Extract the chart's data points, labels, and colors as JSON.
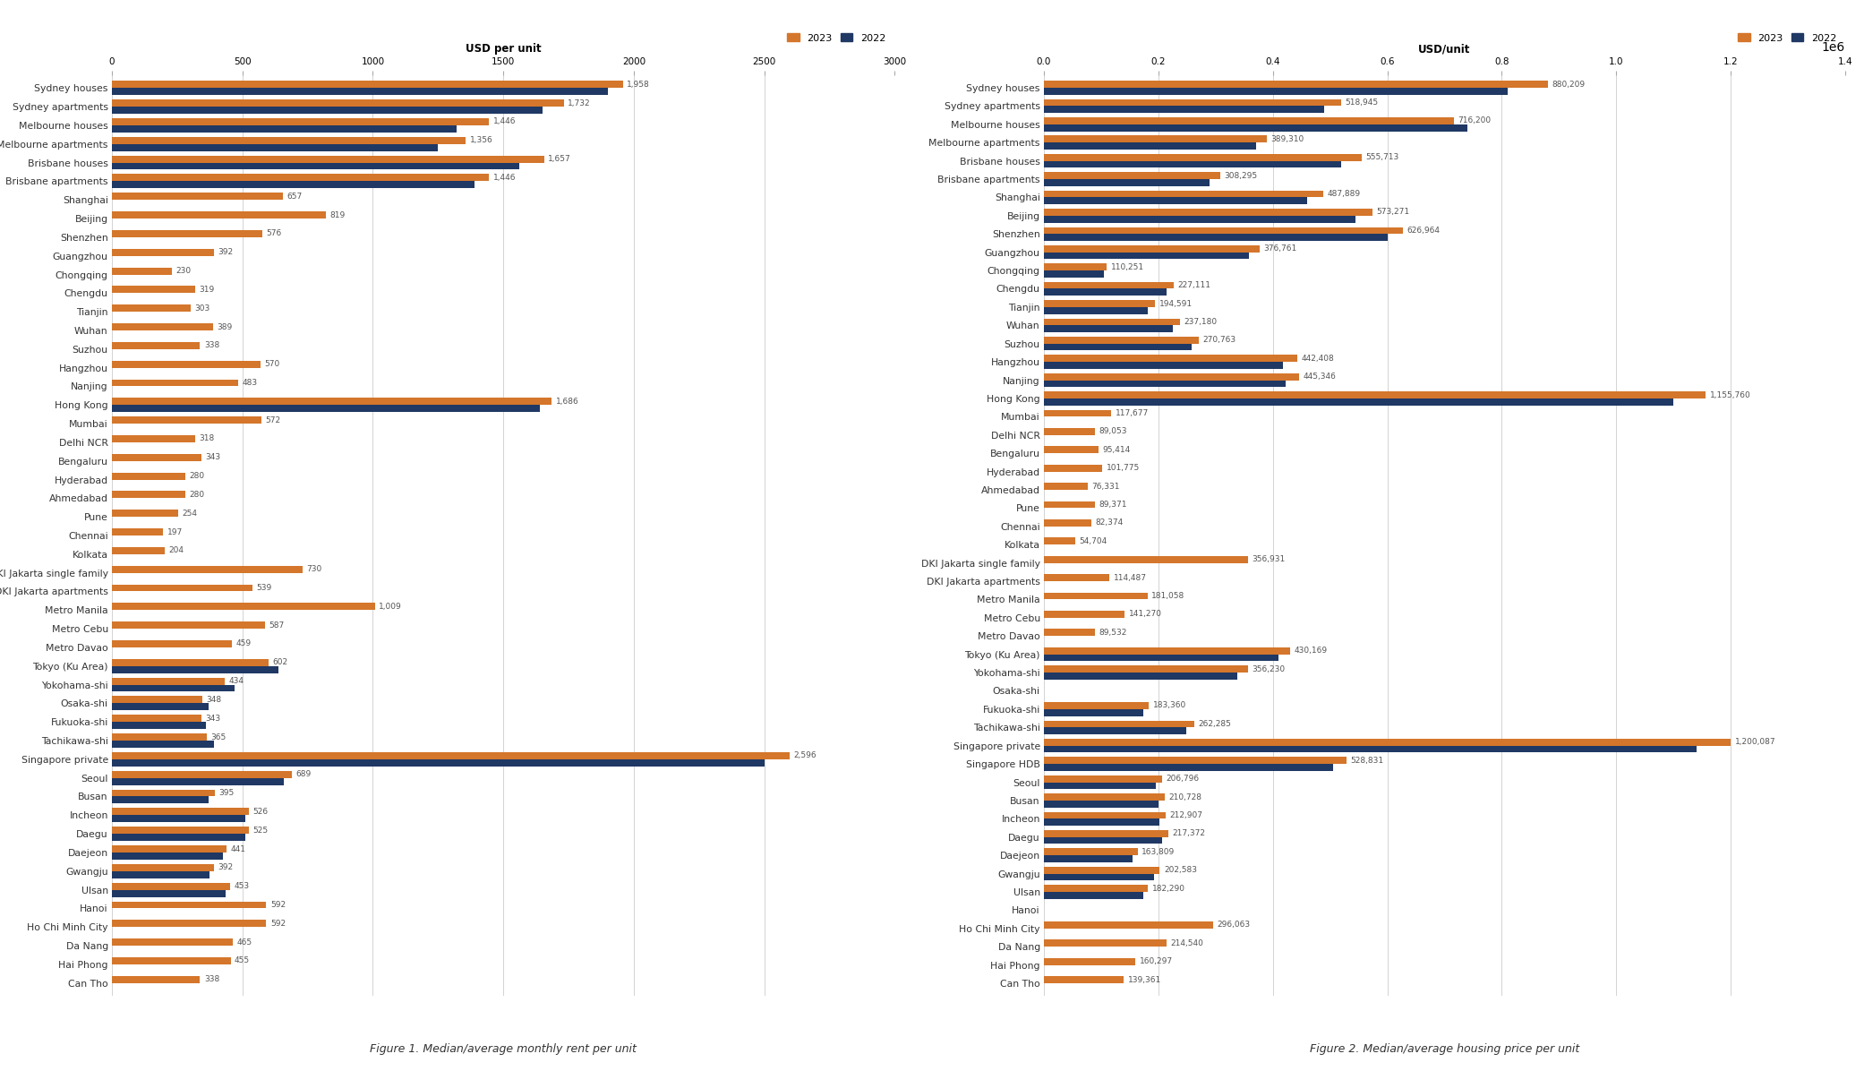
{
  "rent_categories": [
    "Sydney houses",
    "Sydney apartments",
    "Melbourne houses",
    "Melbourne apartments",
    "Brisbane houses",
    "Brisbane apartments",
    "Shanghai",
    "Beijing",
    "Shenzhen",
    "Guangzhou",
    "Chongqing",
    "Chengdu",
    "Tianjin",
    "Wuhan",
    "Suzhou",
    "Hangzhou",
    "Nanjing",
    "Hong Kong",
    "Mumbai",
    "Delhi NCR",
    "Bengaluru",
    "Hyderabad",
    "Ahmedabad",
    "Pune",
    "Chennai",
    "Kolkata",
    "DKI Jakarta single family",
    "DKI Jakarta apartments",
    "Metro Manila",
    "Metro Cebu",
    "Metro Davao",
    "Tokyo (Ku Area)",
    "Yokohama-shi",
    "Osaka-shi",
    "Fukuoka-shi",
    "Tachikawa-shi",
    "Singapore private",
    "Seoul",
    "Busan",
    "Incheon",
    "Daegu",
    "Daejeon",
    "Gwangju",
    "Ulsan",
    "Hanoi",
    "Ho Chi Minh City",
    "Da Nang",
    "Hai Phong",
    "Can Tho"
  ],
  "rent_2023": [
    1958,
    1732,
    1446,
    1356,
    1657,
    1446,
    657,
    819,
    576,
    392,
    230,
    319,
    303,
    389,
    338,
    570,
    483,
    1686,
    572,
    318,
    343,
    280,
    280,
    254,
    197,
    204,
    730,
    539,
    1009,
    587,
    459,
    602,
    434,
    348,
    343,
    365,
    2596,
    689,
    395,
    526,
    525,
    441,
    392,
    453,
    592,
    592,
    465,
    455,
    338
  ],
  "rent_2022": [
    1900,
    1650,
    1320,
    1250,
    1560,
    1390,
    null,
    null,
    null,
    null,
    null,
    null,
    null,
    null,
    null,
    null,
    null,
    1640,
    null,
    null,
    null,
    null,
    null,
    null,
    null,
    null,
    null,
    null,
    null,
    null,
    null,
    640,
    470,
    370,
    360,
    390,
    2500,
    660,
    370,
    510,
    510,
    425,
    375,
    435,
    null,
    null,
    null,
    null,
    null
  ],
  "price_categories": [
    "Sydney houses",
    "Sydney apartments",
    "Melbourne houses",
    "Melbourne apartments",
    "Brisbane houses",
    "Brisbane apartments",
    "Shanghai",
    "Beijing",
    "Shenzhen",
    "Guangzhou",
    "Chongqing",
    "Chengdu",
    "Tianjin",
    "Wuhan",
    "Suzhou",
    "Hangzhou",
    "Nanjing",
    "Hong Kong",
    "Mumbai",
    "Delhi NCR",
    "Bengaluru",
    "Hyderabad",
    "Ahmedabad",
    "Pune",
    "Chennai",
    "Kolkata",
    "DKI Jakarta single family",
    "DKI Jakarta apartments",
    "Metro Manila",
    "Metro Cebu",
    "Metro Davao",
    "Tokyo (Ku Area)",
    "Yokohama-shi",
    "Osaka-shi",
    "Fukuoka-shi",
    "Tachikawa-shi",
    "Singapore private",
    "Singapore HDB",
    "Seoul",
    "Busan",
    "Incheon",
    "Daegu",
    "Daejeon",
    "Gwangju",
    "Ulsan",
    "Hanoi",
    "Ho Chi Minh City",
    "Da Nang",
    "Hai Phong",
    "Can Tho"
  ],
  "price_2023": [
    880209,
    518945,
    716200,
    389310,
    555713,
    308295,
    487889,
    573271,
    626964,
    376761,
    110251,
    227111,
    194591,
    237180,
    270763,
    442408,
    445346,
    1155760,
    117677,
    89053,
    95414,
    101775,
    76331,
    89371,
    82374,
    54704,
    356931,
    114487,
    181058,
    141270,
    89532,
    430169,
    356230,
    null,
    183360,
    262285,
    1200087,
    528831,
    206796,
    210728,
    212907,
    217372,
    163809,
    202583,
    182290,
    null,
    296063,
    214540,
    160297,
    139361
  ],
  "price_2022": [
    810000,
    490000,
    740000,
    370000,
    520000,
    290000,
    460000,
    545000,
    600000,
    358000,
    105000,
    215000,
    182000,
    225000,
    258000,
    418000,
    422000,
    1100000,
    null,
    null,
    null,
    null,
    null,
    null,
    null,
    null,
    null,
    null,
    null,
    null,
    null,
    410000,
    338000,
    null,
    174000,
    249000,
    1140000,
    505000,
    196000,
    200000,
    202000,
    206000,
    155000,
    192000,
    173000,
    null,
    null,
    null,
    null,
    null
  ],
  "color_2023": "#D4762B",
  "color_2022": "#1F3864",
  "fig1_title": "Figure 1. Median/average monthly rent per unit",
  "fig2_title": "Figure 2. Median/average housing price per unit",
  "rent_xlabel": "USD per unit",
  "price_xlabel": "USD/unit",
  "rent_xlim": 3000,
  "price_xlim": 1400000
}
